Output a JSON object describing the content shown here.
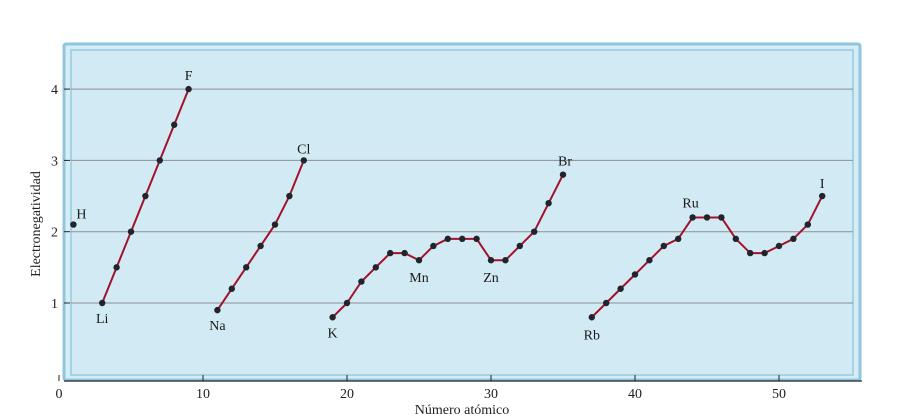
{
  "chart_data": {
    "type": "line",
    "title": "",
    "xlabel": "Número atómico",
    "ylabel": "Electronegatividad",
    "xlim": [
      0,
      55
    ],
    "ylim": [
      0,
      4.5
    ],
    "x_ticks": [
      0,
      10,
      20,
      30,
      40,
      50
    ],
    "y_ticks": [
      1,
      2,
      3,
      4
    ],
    "grid": "horizontal",
    "series": [
      {
        "x": [
          1
        ],
        "y": [
          2.1
        ]
      },
      {
        "x": [
          3,
          4,
          5,
          6,
          7,
          8,
          9
        ],
        "y": [
          1.0,
          1.5,
          2.0,
          2.5,
          3.0,
          3.5,
          4.0
        ]
      },
      {
        "x": [
          11,
          12,
          13,
          14,
          15,
          16,
          17
        ],
        "y": [
          0.9,
          1.2,
          1.5,
          1.8,
          2.1,
          2.5,
          3.0
        ]
      },
      {
        "x": [
          19,
          20,
          21,
          22,
          23,
          24,
          25,
          26,
          27,
          28,
          29,
          30,
          31,
          32,
          33,
          34,
          35
        ],
        "y": [
          0.8,
          1.0,
          1.3,
          1.5,
          1.7,
          1.7,
          1.6,
          1.8,
          1.9,
          1.9,
          1.9,
          1.6,
          1.6,
          1.8,
          2.0,
          2.4,
          2.8
        ]
      },
      {
        "x": [
          37,
          38,
          39,
          40,
          41,
          42,
          43,
          44,
          45,
          46,
          47,
          48,
          49,
          50,
          51,
          52,
          53
        ],
        "y": [
          0.8,
          1.0,
          1.2,
          1.4,
          1.6,
          1.8,
          1.9,
          2.2,
          2.2,
          2.2,
          1.9,
          1.7,
          1.7,
          1.8,
          1.9,
          2.1,
          2.5
        ]
      }
    ],
    "annotations": [
      {
        "text": "H",
        "x": 1,
        "y": 2.1
      },
      {
        "text": "F",
        "x": 9,
        "y": 4.0
      },
      {
        "text": "Li",
        "x": 3,
        "y": 1.0
      },
      {
        "text": "Cl",
        "x": 17,
        "y": 3.0
      },
      {
        "text": "Na",
        "x": 11,
        "y": 0.9
      },
      {
        "text": "K",
        "x": 19,
        "y": 0.8
      },
      {
        "text": "Mn",
        "x": 25,
        "y": 1.6
      },
      {
        "text": "Zn",
        "x": 30,
        "y": 1.6
      },
      {
        "text": "Br",
        "x": 35,
        "y": 2.8
      },
      {
        "text": "Rb",
        "x": 37,
        "y": 0.8
      },
      {
        "text": "Ru",
        "x": 44,
        "y": 2.2
      },
      {
        "text": "I",
        "x": 53,
        "y": 2.5
      }
    ],
    "colors": {
      "line": "#a3122a",
      "points": "#22242b",
      "panel": "#d2eaf4",
      "frame": "#8fc6dd"
    }
  }
}
